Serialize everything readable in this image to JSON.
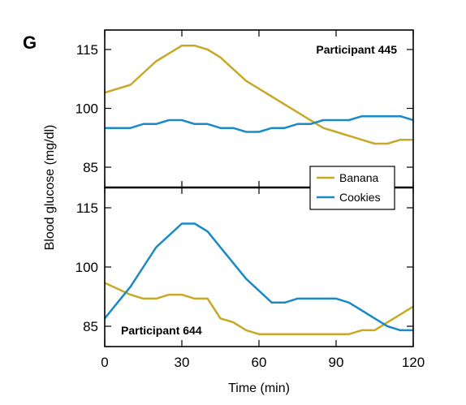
{
  "panel_label": "G",
  "colors": {
    "banana": "#c8a827",
    "cookies": "#1a8ac7",
    "axis": "#000000"
  },
  "chart_data": [
    {
      "type": "line",
      "annotation": "Participant 445",
      "xlabel": "Time (min)",
      "ylabel": "Blood glucose (mg/dl)",
      "xlim": [
        0,
        120
      ],
      "ylim": [
        80,
        120
      ],
      "x_ticks": [
        0,
        30,
        60,
        90,
        120
      ],
      "y_ticks": [
        85,
        100,
        115
      ],
      "legend": {
        "placement": "bottom-right",
        "entries": [
          "Banana",
          "Cookies"
        ]
      },
      "series": [
        {
          "name": "Banana",
          "x": [
            0,
            10,
            20,
            30,
            35,
            40,
            45,
            50,
            55,
            60,
            65,
            70,
            75,
            80,
            85,
            90,
            95,
            100,
            105,
            110,
            115,
            120
          ],
          "y": [
            104,
            106,
            112,
            116,
            116,
            115,
            113,
            110,
            107,
            105,
            103,
            101,
            99,
            97,
            95,
            94,
            93,
            92,
            91,
            91,
            92,
            92
          ]
        },
        {
          "name": "Cookies",
          "x": [
            0,
            5,
            10,
            15,
            20,
            25,
            30,
            35,
            40,
            45,
            50,
            55,
            60,
            65,
            70,
            75,
            80,
            85,
            90,
            95,
            100,
            105,
            110,
            115,
            120
          ],
          "y": [
            95,
            95,
            95,
            96,
            96,
            97,
            97,
            96,
            96,
            95,
            95,
            94,
            94,
            95,
            95,
            96,
            96,
            97,
            97,
            97,
            98,
            98,
            98,
            98,
            97
          ]
        }
      ]
    },
    {
      "type": "line",
      "annotation": "Participant 644",
      "xlabel": "Time (min)",
      "ylabel": "Blood glucose (mg/dl)",
      "xlim": [
        0,
        120
      ],
      "ylim": [
        80,
        120
      ],
      "x_ticks": [
        0,
        30,
        60,
        90,
        120
      ],
      "y_ticks": [
        85,
        100,
        115
      ],
      "series": [
        {
          "name": "Banana",
          "x": [
            0,
            10,
            15,
            20,
            25,
            30,
            35,
            40,
            45,
            50,
            55,
            60,
            65,
            70,
            75,
            80,
            85,
            90,
            95,
            100,
            105,
            110,
            115,
            120
          ],
          "y": [
            96,
            93,
            92,
            92,
            93,
            93,
            92,
            92,
            87,
            86,
            84,
            83,
            83,
            83,
            83,
            83,
            83,
            83,
            83,
            84,
            84,
            86,
            88,
            90
          ]
        },
        {
          "name": "Cookies",
          "x": [
            0,
            5,
            10,
            15,
            20,
            25,
            30,
            35,
            40,
            45,
            50,
            55,
            60,
            65,
            70,
            75,
            80,
            85,
            90,
            95,
            100,
            105,
            110,
            115,
            120
          ],
          "y": [
            87,
            91,
            95,
            100,
            105,
            108,
            111,
            111,
            109,
            105,
            101,
            97,
            94,
            91,
            91,
            92,
            92,
            92,
            92,
            91,
            89,
            87,
            85,
            84,
            84
          ]
        }
      ]
    }
  ]
}
